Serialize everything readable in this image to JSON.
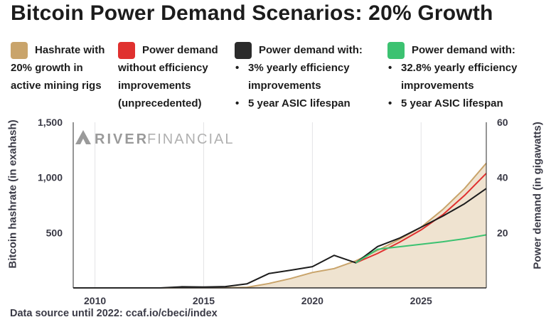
{
  "title": "Bitcoin Power Demand Scenarios: 20% Growth",
  "watermark": {
    "bold": "RIVER",
    "light": "FINANCIAL"
  },
  "legend": [
    {
      "color": "#c9a46b",
      "lines": [
        "Hashrate with",
        "20% growth in",
        "active mining rigs"
      ]
    },
    {
      "color": "#e0312f",
      "lines": [
        "Power demand",
        "without efficiency",
        "improvements",
        "(unprecedented)"
      ]
    },
    {
      "color": "#2b2b2b",
      "lines": [
        "Power demand with:"
      ],
      "bullets": [
        [
          "3% yearly efficiency",
          "improvements"
        ],
        [
          "5 year ASIC lifespan"
        ]
      ]
    },
    {
      "color": "#3cc271",
      "lines": [
        "Power demand with:"
      ],
      "bullets": [
        [
          "32.8% yearly efficiency",
          "improvements"
        ],
        [
          "5 year ASIC lifespan"
        ]
      ]
    }
  ],
  "footer": "Data source until 2022: ccaf.io/cbeci/index",
  "chart_data": {
    "type": "area",
    "xlabel": "",
    "ylabel": "Bitcoin hashrate (in exahash)",
    "y2label": "Power demand (in gigawatts)",
    "xlim": [
      2009,
      2028
    ],
    "ylim": [
      0,
      1500
    ],
    "y2lim": [
      0,
      60
    ],
    "xticks": [
      2010,
      2015,
      2020,
      2025
    ],
    "xtick_labels": [
      "2010",
      "2015",
      "2020",
      "2025"
    ],
    "yticks": [
      500,
      1000,
      1500
    ],
    "ytick_labels": [
      "500",
      "1,000",
      "1,500"
    ],
    "y2ticks": [
      20,
      40,
      60
    ],
    "y2tick_labels": [
      "20",
      "40",
      "60"
    ],
    "grid": "vertical",
    "series": [
      {
        "name": "Hashrate with 20% growth in active mining rigs",
        "axis": "left",
        "kind": "area",
        "color": "#c9a46b",
        "fill": "#efe3d0",
        "x": [
          2009,
          2013,
          2014,
          2015,
          2016,
          2017,
          2018,
          2019,
          2020,
          2021,
          2022,
          2023,
          2024,
          2025,
          2026,
          2027,
          2028
        ],
        "y": [
          0,
          0,
          1,
          1,
          2,
          6,
          40,
          85,
          140,
          175,
          245,
          340,
          440,
          550,
          710,
          900,
          1130
        ]
      },
      {
        "name": "Power demand without efficiency improvements (unprecedented)",
        "axis": "right",
        "kind": "line",
        "color": "#e0312f",
        "x": [
          2022,
          2023,
          2024,
          2025,
          2026,
          2027,
          2028
        ],
        "y": [
          9.1,
          12.5,
          16.5,
          21,
          26.5,
          33.5,
          41.5
        ]
      },
      {
        "name": "Power demand with: 3% yearly efficiency improvements, 5 year ASIC lifespan",
        "axis": "right",
        "kind": "line",
        "color": "#1c1c1c",
        "x": [
          2009,
          2013,
          2014,
          2015,
          2016,
          2017,
          2018,
          2019,
          2020,
          2021,
          2022,
          2023,
          2024,
          2025,
          2026,
          2027,
          2028
        ],
        "y": [
          0,
          0,
          0.4,
          0.3,
          0.5,
          1.5,
          5.2,
          6.4,
          7.7,
          11.8,
          9.1,
          15,
          18,
          22,
          26,
          30.5,
          36
        ]
      },
      {
        "name": "Power demand with: 32.8% yearly efficiency improvements, 5 year ASIC lifespan",
        "axis": "right",
        "kind": "line",
        "color": "#3cc271",
        "x": [
          2022,
          2023,
          2024,
          2025,
          2026,
          2027,
          2028
        ],
        "y": [
          9.1,
          14,
          14.9,
          15.8,
          16.7,
          17.8,
          19.2
        ]
      }
    ]
  }
}
